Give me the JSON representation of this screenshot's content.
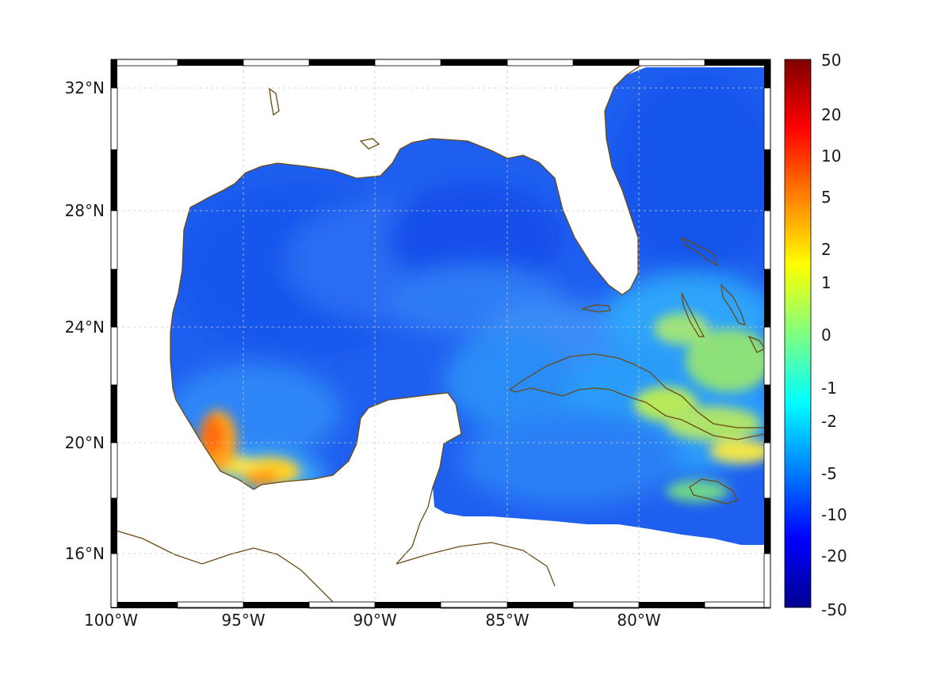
{
  "map": {
    "title": "",
    "projection": "equirectangular",
    "lon_range": [
      -100,
      -75
    ],
    "lat_range": [
      14.2,
      33
    ],
    "lon_ticks": [
      {
        "value": -100,
        "label": "100°W"
      },
      {
        "value": -95,
        "label": "95°W"
      },
      {
        "value": -90,
        "label": "90°W"
      },
      {
        "value": -85,
        "label": "85°W"
      },
      {
        "value": -80,
        "label": "80°W"
      }
    ],
    "lat_ticks": [
      {
        "value": 32,
        "label": "32°N"
      },
      {
        "value": 28,
        "label": "28°N"
      },
      {
        "value": 24,
        "label": "24°N"
      },
      {
        "value": 20,
        "label": "20°N"
      },
      {
        "value": 16,
        "label": "16°N"
      }
    ],
    "grid": true,
    "coastline_color": "#6b4a12",
    "field_description": "ocean field over Gulf of Mexico and Caribbean; mostly negative, positive near Veracruz coast and Cuba/Bahamas",
    "hotspots": [
      {
        "lon": -96.2,
        "lat": 20.1,
        "value": 8
      },
      {
        "lon": -94.2,
        "lat": 18.6,
        "value": 4
      },
      {
        "lon": -79.3,
        "lat": 21.3,
        "value": 0.5
      },
      {
        "lon": -75.8,
        "lat": 19.9,
        "value": 1.5
      },
      {
        "lon": -76.2,
        "lat": 23.2,
        "value": 0.3
      }
    ]
  },
  "colorbar": {
    "labels": [
      "50",
      "20",
      "10",
      "5",
      "2",
      "1",
      "0",
      "-1",
      "-2",
      "-5",
      "-10",
      "-20",
      "-50"
    ],
    "colors": [
      "#7f0000",
      "#ff0000",
      "#ff8000",
      "#ffff00",
      "#80ff80",
      "#00ffff",
      "#0080ff",
      "#0000ff",
      "#00008f"
    ]
  }
}
